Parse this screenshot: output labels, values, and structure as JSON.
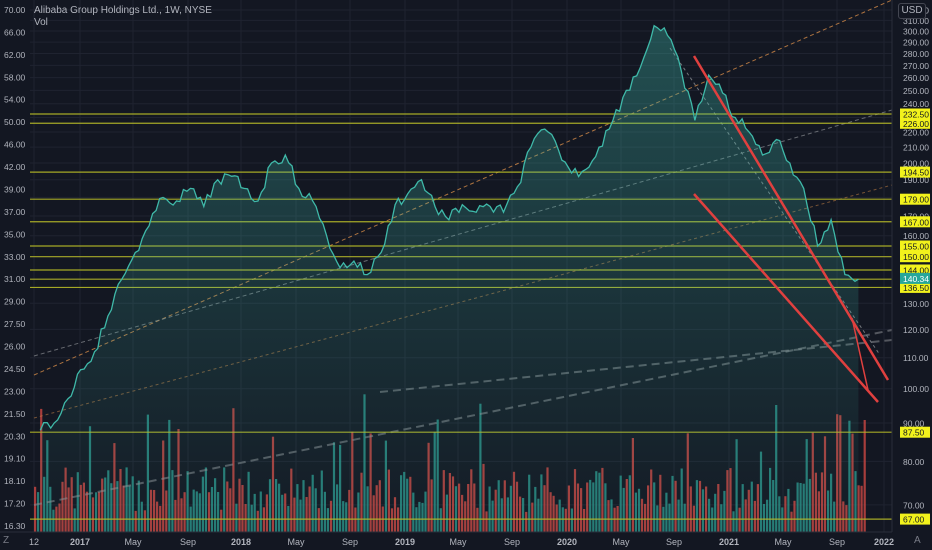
{
  "header": {
    "symbol_line": "Alibaba Group Holdings Ltd., 1W, NYSE",
    "volume_label": "Vol"
  },
  "currency_button": "USD",
  "corner_left": "Z",
  "corner_right": "A",
  "colors": {
    "background": "#131722",
    "grid": "#1f2330",
    "price_line": "#3fb9a9",
    "area_fill": "#3fb9a9",
    "axis_text": "#b2b5be",
    "level_line": "#b5b827",
    "level_label_bg": "#f2f21c",
    "trend_red": "#e0403f",
    "dash_orange": "#c98446",
    "dash_gray": "#8a8d92",
    "vol_up": "#2a8c84",
    "vol_down": "#c24441"
  },
  "chart_data": {
    "type": "line",
    "title": "Alibaba Group Holdings Ltd., 1W, NYSE",
    "x_axis": {
      "tick_labels": [
        "12",
        "2017",
        "May",
        "Sep",
        "2018",
        "May",
        "Sep",
        "2019",
        "May",
        "Sep",
        "2020",
        "May",
        "Sep",
        "2021",
        "May",
        "Sep",
        "2022"
      ],
      "range": [
        "2016-12",
        "2022-01"
      ]
    },
    "y_axis_right": {
      "unit": "USD",
      "tick_labels": [
        "320.00",
        "310.00",
        "300.00",
        "290.00",
        "280.00",
        "270.00",
        "260.00",
        "250.00",
        "240.00",
        "230.00",
        "220.00",
        "210.00",
        "200.00",
        "190.00",
        "180.00",
        "170.00",
        "160.00",
        "150.00",
        "140.00",
        "130.00",
        "120.00",
        "110.00",
        "100.00",
        "90.00",
        "80.00",
        "70.00"
      ],
      "scale": "log",
      "range": [
        66,
        322
      ]
    },
    "y_axis_left": {
      "tick_labels": [
        "70.00",
        "66.00",
        "62.00",
        "58.00",
        "54.00",
        "50.00",
        "46.00",
        "42.00",
        "39.00",
        "37.00",
        "35.00",
        "33.00",
        "31.00",
        "29.00",
        "27.50",
        "26.00",
        "24.50",
        "23.00",
        "21.50",
        "20.30",
        "19.10",
        "18.10",
        "17.20",
        "16.30"
      ]
    },
    "horizontal_levels": [
      {
        "value": 232.5,
        "label": "232.50"
      },
      {
        "value": 226.0,
        "label": "226.00"
      },
      {
        "value": 194.5,
        "label": "194.50"
      },
      {
        "value": 179.0,
        "label": "179.00"
      },
      {
        "value": 167.0,
        "label": "167.00"
      },
      {
        "value": 155.0,
        "label": "155.00"
      },
      {
        "value": 150.0,
        "label": "150.00"
      },
      {
        "value": 144.0,
        "label": "144.00"
      },
      {
        "value": 140.0,
        "label": "140.00"
      },
      {
        "value": 136.5,
        "label": "136.50"
      },
      {
        "value": 87.5,
        "label": "87.50"
      },
      {
        "value": 67.0,
        "label": "67.00"
      }
    ],
    "last_price": {
      "value": 140.34,
      "label": "140.34"
    },
    "series": [
      {
        "type": "line",
        "x": [
          "2016-12",
          "2017-01",
          "2017-02",
          "2017-03",
          "2017-04",
          "2017-05",
          "2017-06",
          "2017-07",
          "2017-08",
          "2017-09",
          "2017-10",
          "2017-11",
          "2017-12",
          "2018-01",
          "2018-02",
          "2018-03",
          "2018-04",
          "2018-05",
          "2018-06",
          "2018-07",
          "2018-08",
          "2018-09",
          "2018-10",
          "2018-11",
          "2018-12",
          "2019-01",
          "2019-02",
          "2019-03",
          "2019-04",
          "2019-05",
          "2019-06",
          "2019-07",
          "2019-08",
          "2019-09",
          "2019-10",
          "2019-11",
          "2019-12",
          "2020-01",
          "2020-02",
          "2020-03",
          "2020-04",
          "2020-05",
          "2020-06",
          "2020-07",
          "2020-08",
          "2020-09",
          "2020-10",
          "2020-11",
          "2020-12",
          "2021-01",
          "2021-02",
          "2021-03",
          "2021-04",
          "2021-05",
          "2021-06",
          "2021-07",
          "2021-08",
          "2021-09",
          "2021-10",
          "2021-11",
          "2021-12"
        ],
        "y": [
          88,
          90,
          97,
          106,
          112,
          125,
          140,
          152,
          165,
          180,
          178,
          185,
          175,
          190,
          192,
          185,
          178,
          200,
          205,
          185,
          178,
          160,
          145,
          148,
          142,
          152,
          176,
          182,
          190,
          175,
          168,
          176,
          172,
          175,
          172,
          186,
          210,
          222,
          208,
          194,
          196,
          210,
          228,
          250,
          268,
          305,
          296,
          265,
          228,
          262,
          248,
          230,
          220,
          205,
          215,
          200,
          185,
          155,
          168,
          142,
          140
        ]
      }
    ],
    "volume_label": "Vol",
    "grid": true,
    "legend": "none"
  }
}
